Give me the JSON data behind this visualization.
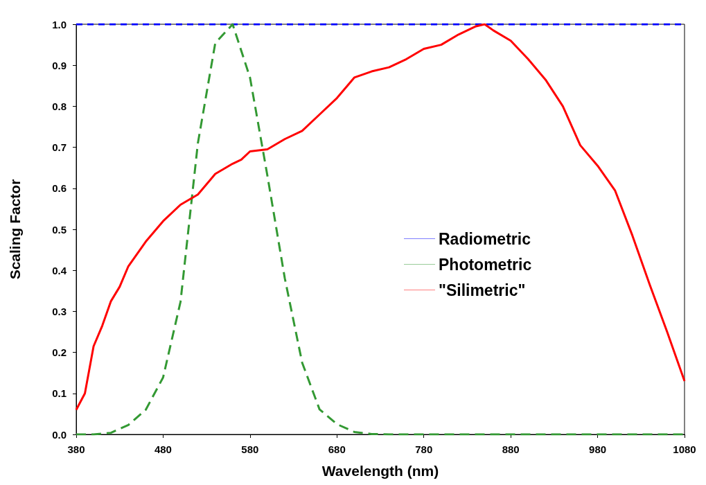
{
  "chart_data": {
    "type": "line",
    "xlabel": "Wavelength (nm)",
    "ylabel": "Scaling Factor",
    "xlim": [
      380,
      1080
    ],
    "ylim": [
      0,
      1
    ],
    "xticks": [
      380,
      480,
      580,
      680,
      780,
      880,
      980,
      1080
    ],
    "yticks": [
      {
        "value": 0,
        "label": "0.0"
      },
      0.1,
      0.2,
      0.3,
      0.4,
      0.5,
      0.6,
      0.7,
      0.8,
      0.9,
      {
        "value": 1,
        "label": "1.0"
      }
    ],
    "grid": false,
    "legend": "right",
    "marker": "none",
    "series": [
      {
        "name": "Radiometric",
        "color": "#0000ff",
        "line_style": "dashed",
        "x": [
          380,
          1080
        ],
        "values": [
          1,
          1
        ]
      },
      {
        "name": "Photometric",
        "color": "#339933",
        "line_style": "dashed",
        "x": [
          380,
          400,
          420,
          440,
          460,
          480,
          500,
          520,
          540,
          560,
          580,
          600,
          620,
          640,
          660,
          680,
          700,
          720,
          740,
          1080
        ],
        "values": [
          0,
          0,
          0.004,
          0.023,
          0.06,
          0.139,
          0.323,
          0.71,
          0.954,
          1,
          0.87,
          0.631,
          0.381,
          0.175,
          0.061,
          0.025,
          0.006,
          0.001,
          0,
          0
        ]
      },
      {
        "name": "\"Silimetric\"",
        "color": "#ff0000",
        "line_style": "solid",
        "x": [
          380,
          390,
          400,
          410,
          420,
          430,
          440,
          460,
          480,
          500,
          520,
          540,
          560,
          570,
          580,
          600,
          620,
          640,
          660,
          680,
          700,
          720,
          740,
          760,
          780,
          800,
          820,
          840,
          850,
          860,
          880,
          900,
          920,
          940,
          960,
          980,
          1000,
          1020,
          1040,
          1060,
          1080
        ],
        "values": [
          0.06,
          0.1,
          0.215,
          0.265,
          0.325,
          0.36,
          0.41,
          0.47,
          0.52,
          0.56,
          0.585,
          0.635,
          0.66,
          0.67,
          0.69,
          0.695,
          0.72,
          0.74,
          0.78,
          0.82,
          0.87,
          0.885,
          0.895,
          0.915,
          0.94,
          0.95,
          0.975,
          0.995,
          1,
          0.985,
          0.96,
          0.915,
          0.865,
          0.8,
          0.705,
          0.655,
          0.595,
          0.485,
          0.365,
          0.25,
          0.13
        ]
      }
    ]
  }
}
